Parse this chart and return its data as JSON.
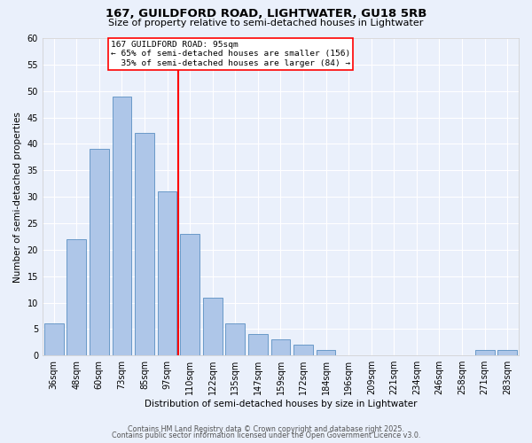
{
  "title1": "167, GUILDFORD ROAD, LIGHTWATER, GU18 5RB",
  "title2": "Size of property relative to semi-detached houses in Lightwater",
  "xlabel": "Distribution of semi-detached houses by size in Lightwater",
  "ylabel": "Number of semi-detached properties",
  "bar_labels": [
    "36sqm",
    "48sqm",
    "60sqm",
    "73sqm",
    "85sqm",
    "97sqm",
    "110sqm",
    "122sqm",
    "135sqm",
    "147sqm",
    "159sqm",
    "172sqm",
    "184sqm",
    "196sqm",
    "209sqm",
    "221sqm",
    "234sqm",
    "246sqm",
    "258sqm",
    "271sqm",
    "283sqm"
  ],
  "bar_heights": [
    6,
    22,
    39,
    49,
    42,
    31,
    23,
    11,
    6,
    4,
    3,
    2,
    1,
    0,
    0,
    0,
    0,
    0,
    0,
    1,
    1
  ],
  "bar_color": "#aec6e8",
  "bar_edge_color": "#5a8fc2",
  "bar_width": 0.85,
  "vline_x": 5.5,
  "vline_color": "red",
  "annotation_text": "167 GUILDFORD ROAD: 95sqm\n← 65% of semi-detached houses are smaller (156)\n  35% of semi-detached houses are larger (84) →",
  "ylim": [
    0,
    60
  ],
  "yticks": [
    0,
    5,
    10,
    15,
    20,
    25,
    30,
    35,
    40,
    45,
    50,
    55,
    60
  ],
  "footer1": "Contains HM Land Registry data © Crown copyright and database right 2025.",
  "footer2": "Contains public sector information licensed under the Open Government Licence v3.0.",
  "bg_color": "#eaf0fb",
  "grid_color": "#ffffff",
  "title_fontsize": 9.5,
  "subtitle_fontsize": 8.0,
  "axis_label_fontsize": 7.5,
  "tick_fontsize": 7.0,
  "annot_fontsize": 6.8,
  "footer_fontsize": 5.8
}
